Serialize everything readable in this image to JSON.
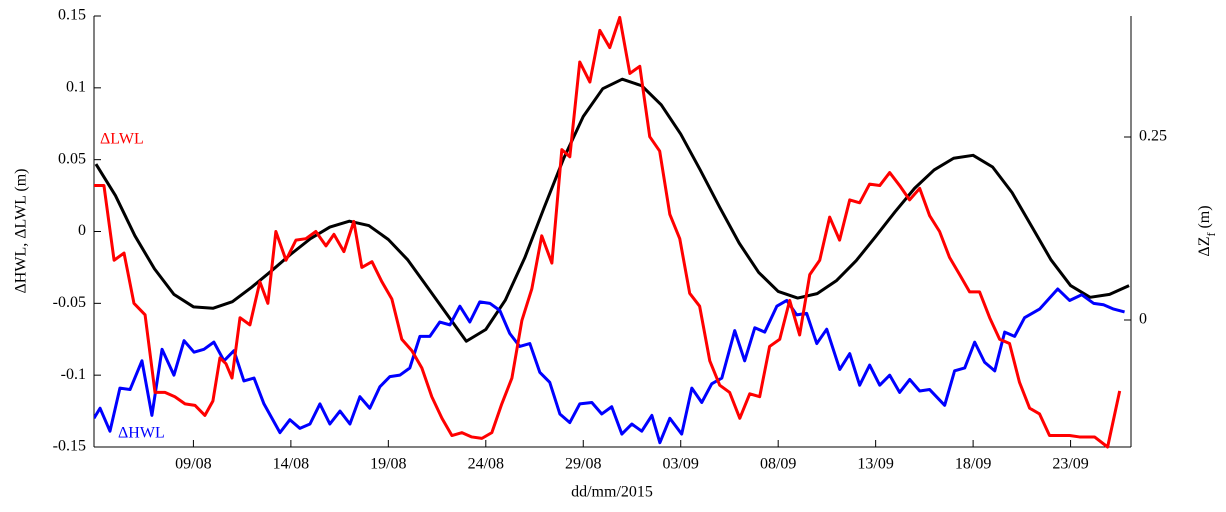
{
  "chart_data": {
    "type": "line",
    "xlabel": "dd/mm/2015",
    "ylabel": "ΔHWL, ΔLWL (m)",
    "y2label_parts": [
      "ΔZ",
      "f",
      " (m)"
    ],
    "xlim": [
      3.9,
      57.1
    ],
    "xticks": [
      {
        "value": 9,
        "label": "09/08"
      },
      {
        "value": 14,
        "label": "14/08"
      },
      {
        "value": 19,
        "label": "19/08"
      },
      {
        "value": 24,
        "label": "24/08"
      },
      {
        "value": 29,
        "label": "29/08"
      },
      {
        "value": 34,
        "label": "03/09"
      },
      {
        "value": 39,
        "label": "08/09"
      },
      {
        "value": 44,
        "label": "13/09"
      },
      {
        "value": 49,
        "label": "18/09"
      },
      {
        "value": 54,
        "label": "23/09"
      }
    ],
    "ylim": [
      -0.15,
      0.15
    ],
    "yticks": [
      -0.15,
      -0.1,
      -0.05,
      0,
      0.05,
      0.1,
      0.15
    ],
    "y2lim": [
      -0.1735,
      0.4153
    ],
    "y2ticks": [
      0,
      0.25
    ],
    "series": [
      {
        "name": "ΔLWL",
        "color": "#ff0000",
        "x": [
          3.9,
          4.41,
          4.93,
          5.44,
          5.95,
          6.52,
          7.03,
          7.54,
          8.05,
          8.57,
          9.08,
          9.59,
          10.0,
          10.36,
          10.67,
          10.98,
          11.39,
          11.9,
          12.41,
          12.82,
          13.23,
          13.75,
          14.26,
          14.77,
          15.28,
          15.8,
          16.21,
          16.72,
          17.23,
          17.64,
          18.16,
          18.67,
          19.18,
          19.69,
          20.21,
          20.72,
          21.23,
          21.75,
          22.26,
          22.77,
          23.28,
          23.8,
          24.31,
          24.82,
          25.34,
          25.85,
          26.36,
          26.87,
          27.39,
          27.9,
          28.31,
          28.82,
          29.34,
          29.85,
          30.36,
          30.87,
          31.39,
          31.9,
          32.41,
          32.92,
          33.44,
          33.95,
          34.46,
          34.97,
          35.49,
          36.0,
          36.51,
          37.03,
          37.54,
          38.05,
          38.56,
          39.08,
          39.59,
          40.1,
          40.62,
          41.13,
          41.64,
          42.15,
          42.67,
          43.18,
          43.69,
          44.21,
          44.72,
          45.23,
          45.74,
          46.26,
          46.77,
          47.28,
          47.79,
          48.31,
          48.82,
          49.33,
          49.85,
          50.36,
          50.87,
          51.38,
          51.9,
          52.41,
          52.92,
          53.44,
          53.95,
          54.46,
          55.23,
          55.9,
          56.52
        ],
        "values": [
          0.032,
          0.032,
          -0.02,
          -0.015,
          -0.05,
          -0.058,
          -0.112,
          -0.112,
          -0.115,
          -0.12,
          -0.121,
          -0.128,
          -0.118,
          -0.088,
          -0.092,
          -0.102,
          -0.06,
          -0.065,
          -0.035,
          -0.05,
          0.0,
          -0.02,
          -0.006,
          -0.005,
          0.0,
          -0.01,
          -0.002,
          -0.014,
          0.007,
          -0.025,
          -0.021,
          -0.035,
          -0.047,
          -0.075,
          -0.083,
          -0.095,
          -0.115,
          -0.13,
          -0.142,
          -0.14,
          -0.143,
          -0.144,
          -0.14,
          -0.12,
          -0.102,
          -0.062,
          -0.04,
          -0.003,
          -0.022,
          0.057,
          0.052,
          0.118,
          0.104,
          0.14,
          0.128,
          0.149,
          0.11,
          0.115,
          0.066,
          0.056,
          0.012,
          -0.005,
          -0.043,
          -0.052,
          -0.09,
          -0.107,
          -0.112,
          -0.13,
          -0.113,
          -0.115,
          -0.08,
          -0.075,
          -0.048,
          -0.072,
          -0.03,
          -0.02,
          0.01,
          -0.006,
          0.022,
          0.02,
          0.033,
          0.032,
          0.041,
          0.032,
          0.022,
          0.03,
          0.011,
          0.0,
          -0.018,
          -0.03,
          -0.042,
          -0.042,
          -0.06,
          -0.075,
          -0.078,
          -0.105,
          -0.123,
          -0.127,
          -0.142,
          -0.142,
          -0.142,
          -0.143,
          -0.143,
          -0.15,
          -0.111
        ]
      },
      {
        "name": "ΔHWL",
        "color": "#0000ff",
        "x": [
          3.9,
          4.21,
          4.72,
          5.23,
          5.75,
          6.36,
          6.87,
          7.39,
          8.0,
          8.52,
          9.03,
          9.54,
          10.05,
          10.57,
          11.08,
          11.59,
          12.11,
          12.62,
          13.44,
          13.95,
          14.46,
          14.98,
          15.49,
          16.0,
          16.52,
          17.03,
          17.54,
          18.05,
          18.57,
          19.08,
          19.59,
          20.1,
          20.62,
          21.13,
          21.64,
          22.16,
          22.67,
          23.18,
          23.69,
          24.21,
          24.72,
          25.23,
          25.74,
          26.26,
          26.77,
          27.28,
          27.8,
          28.31,
          28.82,
          29.44,
          29.95,
          30.46,
          30.98,
          31.49,
          32.0,
          32.52,
          32.93,
          33.44,
          34.05,
          34.57,
          35.08,
          35.59,
          36.11,
          36.77,
          37.28,
          37.8,
          38.31,
          38.93,
          39.44,
          39.95,
          40.46,
          40.98,
          41.49,
          42.16,
          42.67,
          43.18,
          43.69,
          44.21,
          44.72,
          45.23,
          45.75,
          46.26,
          46.77,
          47.54,
          48.05,
          48.57,
          49.08,
          49.59,
          50.11,
          50.62,
          51.13,
          51.64,
          52.41,
          53.34,
          53.95,
          54.57,
          55.18,
          55.69,
          56.21,
          56.77
        ],
        "values": [
          -0.13,
          -0.123,
          -0.139,
          -0.109,
          -0.11,
          -0.09,
          -0.128,
          -0.082,
          -0.1,
          -0.076,
          -0.084,
          -0.082,
          -0.077,
          -0.09,
          -0.083,
          -0.104,
          -0.102,
          -0.12,
          -0.14,
          -0.131,
          -0.137,
          -0.134,
          -0.12,
          -0.134,
          -0.125,
          -0.134,
          -0.115,
          -0.123,
          -0.108,
          -0.101,
          -0.1,
          -0.095,
          -0.073,
          -0.073,
          -0.063,
          -0.065,
          -0.052,
          -0.063,
          -0.049,
          -0.05,
          -0.055,
          -0.071,
          -0.08,
          -0.078,
          -0.098,
          -0.105,
          -0.127,
          -0.133,
          -0.12,
          -0.119,
          -0.127,
          -0.122,
          -0.141,
          -0.134,
          -0.139,
          -0.128,
          -0.147,
          -0.13,
          -0.141,
          -0.109,
          -0.119,
          -0.106,
          -0.102,
          -0.069,
          -0.09,
          -0.067,
          -0.07,
          -0.052,
          -0.048,
          -0.058,
          -0.057,
          -0.078,
          -0.068,
          -0.096,
          -0.085,
          -0.107,
          -0.093,
          -0.107,
          -0.1,
          -0.112,
          -0.103,
          -0.111,
          -0.11,
          -0.121,
          -0.097,
          -0.095,
          -0.077,
          -0.091,
          -0.097,
          -0.07,
          -0.073,
          -0.06,
          -0.054,
          -0.04,
          -0.048,
          -0.044,
          -0.05,
          -0.051,
          -0.054,
          -0.056
        ]
      },
      {
        "color": "#000000",
        "axis": "y2",
        "x": [
          4,
          5,
          6,
          7,
          8,
          9,
          10,
          11,
          12,
          13,
          14,
          15,
          16,
          17,
          18,
          19,
          20,
          21,
          22,
          23,
          24,
          25,
          26,
          27,
          28,
          29,
          30,
          31,
          32,
          33,
          34,
          35,
          36,
          37,
          38,
          39,
          40,
          41,
          42,
          43,
          44,
          45,
          46,
          47,
          48,
          49,
          50,
          51,
          52,
          53,
          54,
          55,
          56,
          57
        ],
        "values": [
          0.213,
          0.17,
          0.115,
          0.07,
          0.035,
          0.018,
          0.016,
          0.025,
          0.045,
          0.067,
          0.09,
          0.111,
          0.127,
          0.135,
          0.129,
          0.11,
          0.082,
          0.045,
          0.008,
          -0.029,
          -0.013,
          0.027,
          0.085,
          0.154,
          0.221,
          0.278,
          0.316,
          0.329,
          0.32,
          0.294,
          0.254,
          0.205,
          0.154,
          0.105,
          0.065,
          0.039,
          0.03,
          0.036,
          0.054,
          0.081,
          0.114,
          0.148,
          0.18,
          0.205,
          0.221,
          0.225,
          0.209,
          0.174,
          0.128,
          0.082,
          0.047,
          0.031,
          0.035,
          0.047
        ]
      }
    ]
  }
}
